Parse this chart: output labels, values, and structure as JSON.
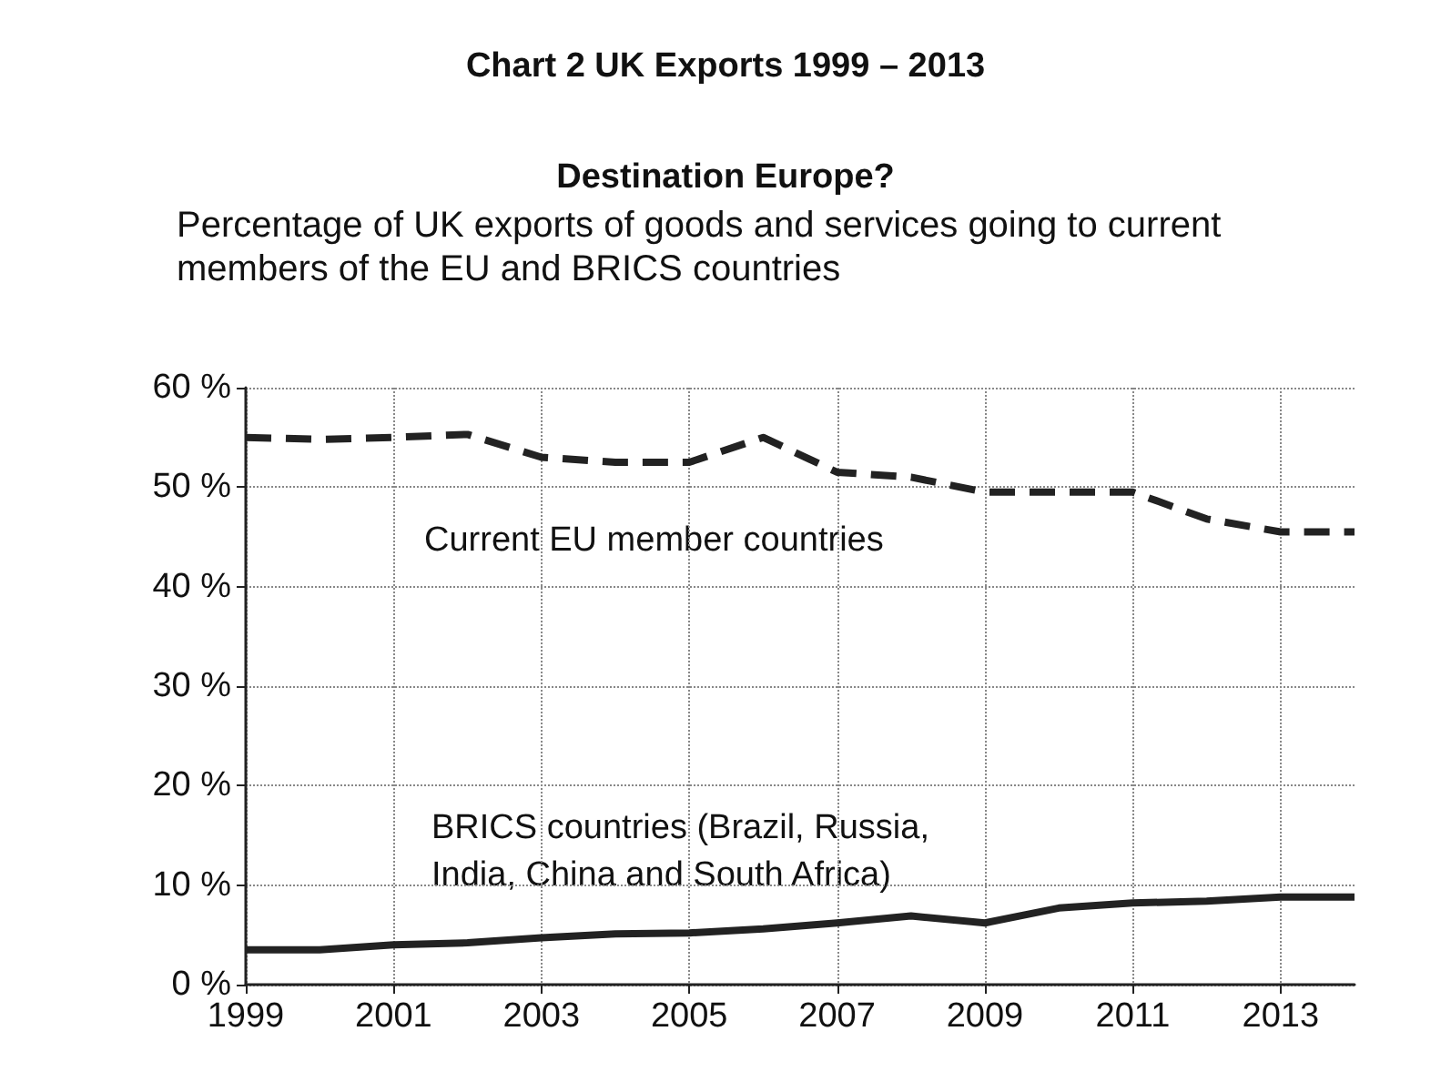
{
  "chart_data": {
    "type": "line",
    "title": "Chart 2 UK Exports 1999 – 2013",
    "subtitle": "Destination Europe?",
    "annotations": [
      "Percentage of UK exports of goods and services going to current members of the EU and BRICS countries"
    ],
    "x": [
      1999,
      2000,
      2001,
      2002,
      2003,
      2004,
      2005,
      2006,
      2007,
      2008,
      2009,
      2010,
      2011,
      2012,
      2013,
      2014
    ],
    "series": [
      {
        "name": "Current EU member countries",
        "color": "#222222",
        "line_style": "dashed",
        "values": [
          55,
          54.8,
          55,
          55.3,
          53,
          52.5,
          52.5,
          55,
          51.5,
          51,
          49.5,
          49.5,
          49.5,
          46.8,
          45.5,
          45.5
        ]
      },
      {
        "name": "BRICS countries (Brazil, Russia,\nIndia, China and South Africa)",
        "color": "#222222",
        "line_style": "solid",
        "values": [
          3.5,
          3.5,
          4,
          4.2,
          4.7,
          5.1,
          5.2,
          5.6,
          6.2,
          6.9,
          6.2,
          7.7,
          8.2,
          8.4,
          8.8,
          8.8
        ]
      }
    ],
    "xlim": [
      1999,
      2014
    ],
    "xticks": [
      1999,
      2001,
      2003,
      2005,
      2007,
      2009,
      2011,
      2013
    ],
    "ylim": [
      0,
      60
    ],
    "yticks": [
      {
        "value": 0,
        "label": "0 %"
      },
      {
        "value": 10,
        "label": "10 %"
      },
      {
        "value": 20,
        "label": "20 %"
      },
      {
        "value": 30,
        "label": "30 %"
      },
      {
        "value": 40,
        "label": "40 %"
      },
      {
        "value": 50,
        "label": "50 %"
      },
      {
        "value": 60,
        "label": "60 %"
      }
    ],
    "grid": true,
    "marker": "none"
  }
}
